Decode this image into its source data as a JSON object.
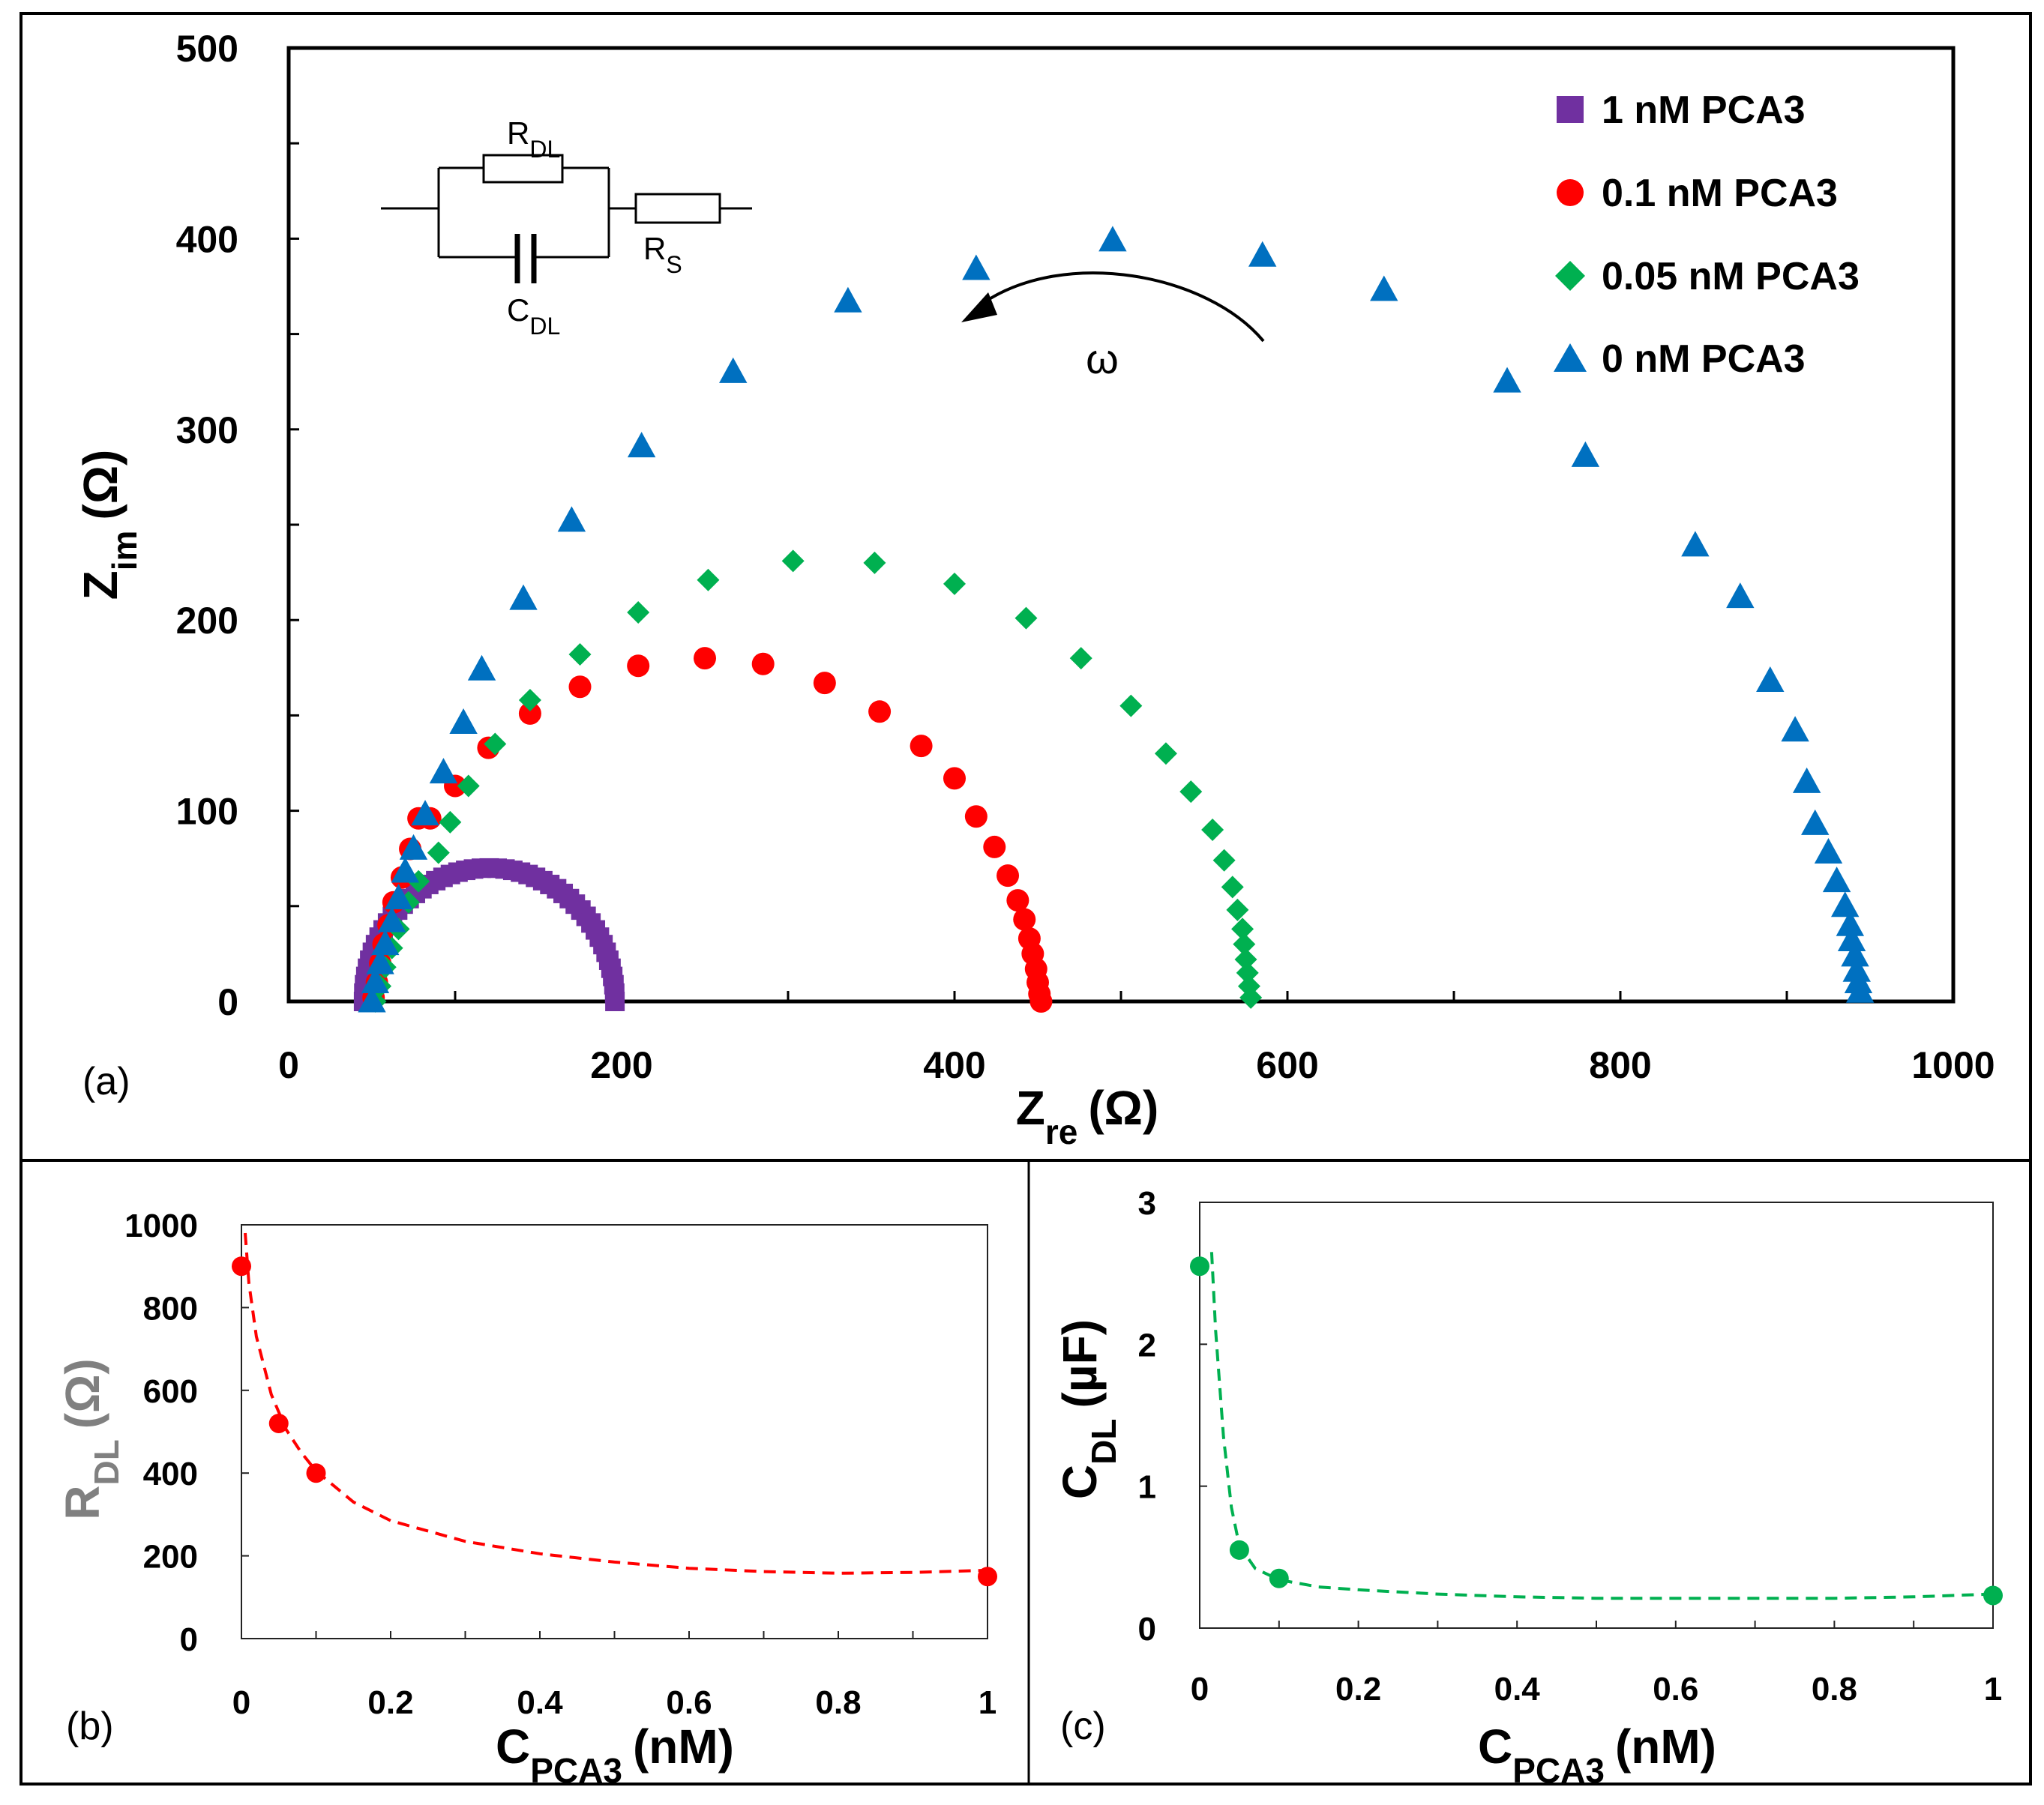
{
  "chart_data": [
    {
      "panel": "(a)",
      "type": "scatter",
      "xlabel": "Z",
      "xlabel_sub": "re",
      "xlabel_unit": "(Ω)",
      "ylabel": "Z",
      "ylabel_sub": "im",
      "ylabel_unit": "(Ω)",
      "xlim": [
        0,
        1000
      ],
      "ylim": [
        0,
        500
      ],
      "xticks": [
        "0",
        "200",
        "400",
        "600",
        "800",
        "1000"
      ],
      "yticks": [
        "0",
        "100",
        "200",
        "300",
        "400",
        "500"
      ],
      "annotation_omega": "ω",
      "circuit_labels": {
        "rdl": "R",
        "rdl_sub": "DL",
        "rs": "R",
        "rs_sub": "S",
        "cdl": "C",
        "cdl_sub": "DL"
      },
      "series": [
        {
          "name": "1 nM PCA3",
          "marker": "square",
          "color": "#7030A0",
          "semicircle": {
            "r0": 45,
            "r1": 196,
            "peak": 70,
            "n": 50
          }
        },
        {
          "name": "0.1 nM PCA3",
          "marker": "circle",
          "color": "#FF0000",
          "points": [
            [
              51,
              2
            ],
            [
              53,
              10
            ],
            [
              55,
              20
            ],
            [
              57,
              30
            ],
            [
              60,
              40
            ],
            [
              63,
              52
            ],
            [
              68,
              65
            ],
            [
              73,
              80
            ],
            [
              78,
              96
            ],
            [
              85,
              96
            ],
            [
              100,
              113
            ],
            [
              120,
              133
            ],
            [
              145,
              151
            ],
            [
              175,
              165
            ],
            [
              210,
              176
            ],
            [
              250,
              180
            ],
            [
              285,
              177
            ],
            [
              322,
              167
            ],
            [
              355,
              152
            ],
            [
              380,
              134
            ],
            [
              400,
              117
            ],
            [
              413,
              97
            ],
            [
              424,
              81
            ],
            [
              432,
              66
            ],
            [
              438,
              53
            ],
            [
              442,
              43
            ],
            [
              445,
              33
            ],
            [
              447,
              25
            ],
            [
              449,
              17
            ],
            [
              450,
              10
            ],
            [
              451,
              4
            ],
            [
              452,
              0
            ]
          ]
        },
        {
          "name": "0.05 nM PCA3",
          "marker": "diamond",
          "color": "#00B050",
          "points": [
            [
              52,
              0
            ],
            [
              55,
              8
            ],
            [
              58,
              18
            ],
            [
              62,
              28
            ],
            [
              66,
              38
            ],
            [
              72,
              52
            ],
            [
              78,
              63
            ],
            [
              90,
              78
            ],
            [
              97,
              94
            ],
            [
              108,
              113
            ],
            [
              124,
              135
            ],
            [
              145,
              158
            ],
            [
              175,
              182
            ],
            [
              210,
              204
            ],
            [
              252,
              221
            ],
            [
              303,
              231
            ],
            [
              352,
              230
            ],
            [
              400,
              219
            ],
            [
              443,
              201
            ],
            [
              476,
              180
            ],
            [
              506,
              155
            ],
            [
              527,
              130
            ],
            [
              542,
              110
            ],
            [
              555,
              90
            ],
            [
              562,
              74
            ],
            [
              567,
              60
            ],
            [
              570,
              48
            ],
            [
              573,
              38
            ],
            [
              574,
              30
            ],
            [
              575,
              22
            ],
            [
              576,
              15
            ],
            [
              577,
              8
            ],
            [
              578,
              2
            ]
          ]
        },
        {
          "name": "0 nM PCA3",
          "marker": "triangle",
          "color": "#0070C0",
          "points": [
            [
              50,
              0
            ],
            [
              52,
              10
            ],
            [
              55,
              20
            ],
            [
              58,
              30
            ],
            [
              62,
              42
            ],
            [
              66,
              54
            ],
            [
              70,
              68
            ],
            [
              75,
              80
            ],
            [
              82,
              98
            ],
            [
              93,
              120
            ],
            [
              105,
              146
            ],
            [
              116,
              174
            ],
            [
              141,
              211
            ],
            [
              170,
              252
            ],
            [
              212,
              291
            ],
            [
              267,
              330
            ],
            [
              336,
              367
            ],
            [
              413,
              384
            ],
            [
              495,
              399
            ],
            [
              585,
              391
            ],
            [
              658,
              373
            ],
            [
              732,
              325
            ],
            [
              779,
              286
            ],
            [
              845,
              239
            ],
            [
              872,
              212
            ],
            [
              890,
              168
            ],
            [
              905,
              142
            ],
            [
              912,
              115
            ],
            [
              917,
              93
            ],
            [
              925,
              78
            ],
            [
              930,
              63
            ],
            [
              935,
              50
            ],
            [
              938,
              40
            ],
            [
              939,
              32
            ],
            [
              941,
              24
            ],
            [
              942,
              16
            ],
            [
              943,
              10
            ],
            [
              944,
              5
            ]
          ]
        }
      ]
    },
    {
      "panel": "(b)",
      "type": "scatter",
      "xlabel": "C",
      "xlabel_sub": "PCA3",
      "xlabel_unit": "(nM)",
      "ylabel": "R",
      "ylabel_sub": "DL",
      "ylabel_unit": "(Ω)",
      "xlim": [
        0,
        1
      ],
      "ylim": [
        0,
        1000
      ],
      "xticks": [
        "0",
        "0.2",
        "0.4",
        "0.6",
        "0.8",
        "1"
      ],
      "yticks": [
        "0",
        "200",
        "400",
        "600",
        "800",
        "1000"
      ],
      "color": "#FF0000",
      "x": [
        0,
        0.05,
        0.1,
        1
      ],
      "y": [
        900,
        520,
        400,
        150
      ],
      "fit": {
        "x": [
          0.005,
          0.01,
          0.02,
          0.04,
          0.06,
          0.08,
          0.1,
          0.15,
          0.2,
          0.3,
          0.4,
          0.5,
          0.6,
          0.7,
          0.8,
          0.9,
          1.0
        ],
        "y": [
          980,
          860,
          730,
          590,
          505,
          450,
          405,
          330,
          285,
          235,
          205,
          185,
          170,
          162,
          158,
          160,
          165
        ]
      }
    },
    {
      "panel": "(c)",
      "type": "scatter",
      "xlabel": "C",
      "xlabel_sub": "PCA3",
      "xlabel_unit": "(nM)",
      "ylabel": "C",
      "ylabel_sub": "DL",
      "ylabel_unit": "(µF)",
      "xlim": [
        0,
        1
      ],
      "ylim": [
        0,
        3
      ],
      "xticks": [
        "0",
        "0.2",
        "0.4",
        "0.6",
        "0.8",
        "1"
      ],
      "yticks": [
        "0",
        "1",
        "2",
        "3"
      ],
      "color": "#00B050",
      "x": [
        0,
        0.05,
        0.1,
        1
      ],
      "y": [
        2.55,
        0.55,
        0.35,
        0.23
      ],
      "fit": {
        "x": [
          0.015,
          0.02,
          0.03,
          0.04,
          0.05,
          0.07,
          0.1,
          0.15,
          0.2,
          0.3,
          0.4,
          0.5,
          0.6,
          0.7,
          0.8,
          0.9,
          1.0
        ],
        "y": [
          2.65,
          2.1,
          1.35,
          0.85,
          0.58,
          0.42,
          0.34,
          0.29,
          0.27,
          0.24,
          0.22,
          0.21,
          0.21,
          0.21,
          0.21,
          0.22,
          0.24
        ]
      }
    }
  ]
}
